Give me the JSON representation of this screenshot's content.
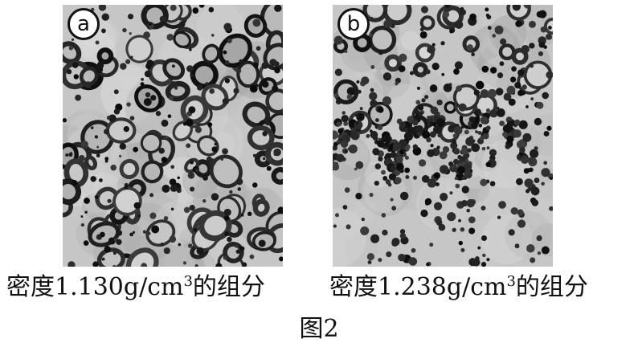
{
  "panels": [
    {
      "badge": "a",
      "caption": {
        "prefix": "密度1.130g/cm",
        "superscript": "3",
        "suffix": "的组分"
      }
    },
    {
      "badge": "b",
      "caption": {
        "prefix": "密度1.238g/cm",
        "superscript": "3",
        "suffix": "的组分"
      }
    }
  ],
  "figure_label": "图2"
}
